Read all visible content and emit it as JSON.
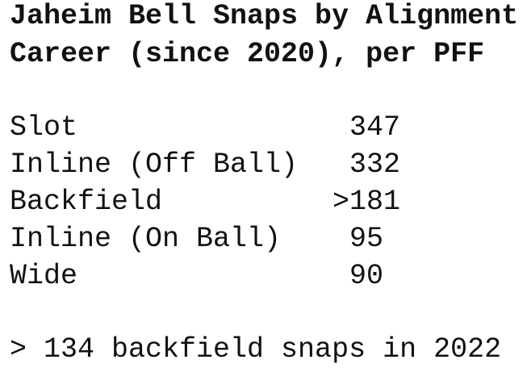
{
  "title": [
    "Jaheim Bell Snaps by Alignment",
    "Career (since 2020), per PFF"
  ],
  "rows": [
    {
      "label": "Slot",
      "value": 347
    },
    {
      "label": "Inline (Off Ball)",
      "value": 332
    },
    {
      "label": "Backfield",
      "value": ">181"
    },
    {
      "label": "Inline (On Ball)",
      "value": 95
    },
    {
      "label": "Wide",
      "value": 90
    }
  ],
  "footnote": "> 134 backfield snaps in 2022"
}
